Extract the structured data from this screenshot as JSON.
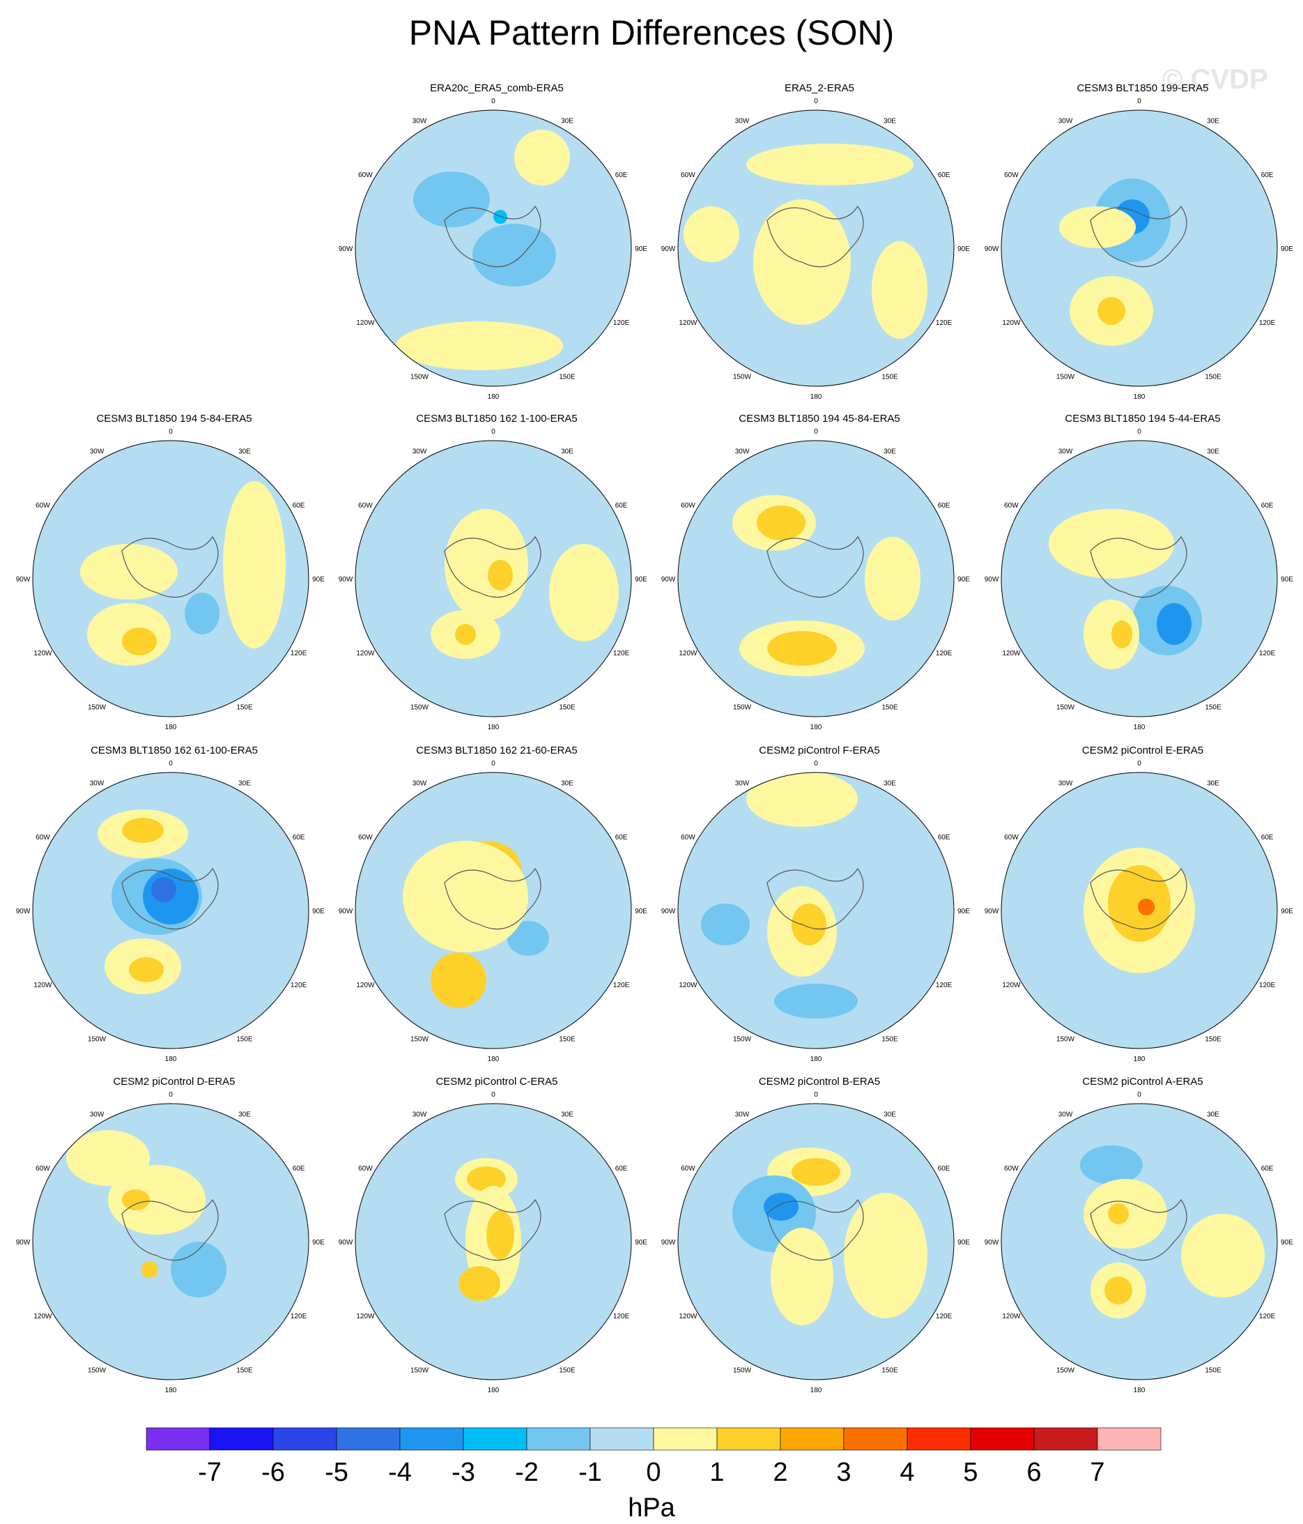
{
  "title": "PNA Pattern Differences (SON)",
  "watermark": "© CVDP",
  "lon_labels": [
    "180",
    "150E",
    "120E",
    "90E",
    "60E",
    "30E",
    "0",
    "30W",
    "60W",
    "90W",
    "120W",
    "150W"
  ],
  "colorbar": {
    "units": "hPa",
    "labels": [
      "-7",
      "-6",
      "-5",
      "-4",
      "-3",
      "-2",
      "-1",
      "0",
      "1",
      "2",
      "3",
      "4",
      "5",
      "6",
      "7"
    ],
    "colors": [
      "#7a2ef0",
      "#1a14f5",
      "#2a46e8",
      "#2f72e6",
      "#1e96f0",
      "#00bef5",
      "#72c6f0",
      "#b4ddf2",
      "#fdf8a0",
      "#fdd12a",
      "#fca600",
      "#fc7000",
      "#fb2c00",
      "#e40000",
      "#c91c1c",
      "#fcb4b4"
    ]
  },
  "panels": [
    {
      "title": "ERA20c_ERA5_comb-ERA5",
      "col": 1,
      "row": 0
    },
    {
      "title": "ERA5_2-ERA5",
      "col": 2,
      "row": 0
    },
    {
      "title": "CESM3 BLT1850 199-ERA5",
      "col": 3,
      "row": 0
    },
    {
      "title": "CESM3 BLT1850 194 5-84-ERA5",
      "col": 0,
      "row": 1
    },
    {
      "title": "CESM3 BLT1850 162 1-100-ERA5",
      "col": 1,
      "row": 1
    },
    {
      "title": "CESM3 BLT1850 194 45-84-ERA5",
      "col": 2,
      "row": 1
    },
    {
      "title": "CESM3 BLT1850 194 5-44-ERA5",
      "col": 3,
      "row": 1
    },
    {
      "title": "CESM3 BLT1850 162 61-100-ERA5",
      "col": 0,
      "row": 2
    },
    {
      "title": "CESM3 BLT1850 162 21-60-ERA5",
      "col": 1,
      "row": 2
    },
    {
      "title": "CESM2 piControl F-ERA5",
      "col": 2,
      "row": 2
    },
    {
      "title": "CESM2 piControl E-ERA5",
      "col": 3,
      "row": 2
    },
    {
      "title": "CESM2 piControl D-ERA5",
      "col": 0,
      "row": 3
    },
    {
      "title": "CESM2 piControl C-ERA5",
      "col": 1,
      "row": 3
    },
    {
      "title": "CESM2 piControl B-ERA5",
      "col": 2,
      "row": 3
    },
    {
      "title": "CESM2 piControl A-ERA5",
      "col": 3,
      "row": 3
    }
  ]
}
